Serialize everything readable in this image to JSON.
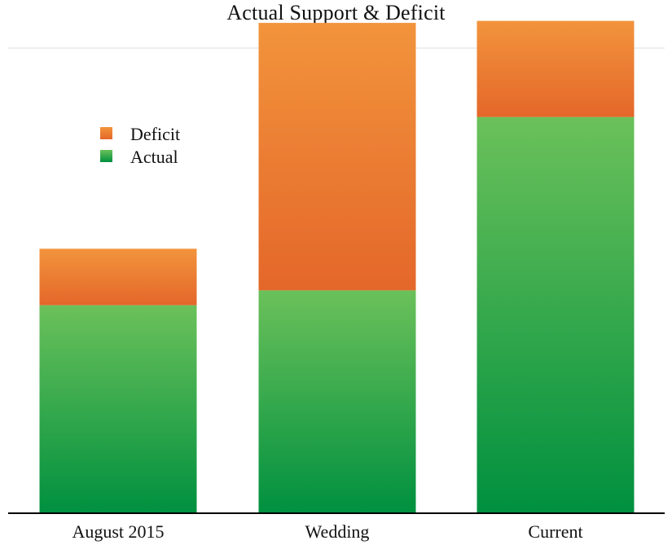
{
  "chart_data": {
    "type": "bar",
    "stacked": true,
    "title": "Actual Support & Deficit",
    "categories": [
      "August 2015",
      "Wedding",
      "Current"
    ],
    "series": [
      {
        "name": "Actual",
        "values": [
          2.1,
          2.25,
          4.0
        ]
      },
      {
        "name": "Deficit",
        "values": [
          0.57,
          2.7,
          0.97
        ]
      }
    ],
    "ylim": [
      0,
      5
    ],
    "legend": "top-left",
    "grid": false,
    "colors": {
      "Actual": {
        "top": "#6bc15a",
        "bottom": "#00903f"
      },
      "Deficit": {
        "top": "#f2943c",
        "bottom": "#e4672a"
      }
    }
  }
}
